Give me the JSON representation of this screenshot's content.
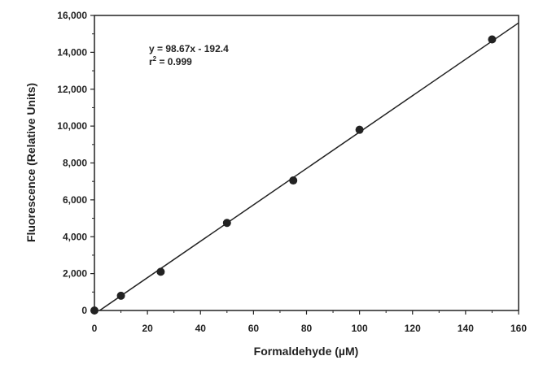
{
  "chart_data": {
    "type": "scatter",
    "title": "",
    "xlabel": "Formaldehyde (µM)",
    "ylabel": "Fluorescence (Relative Units)",
    "xlim": [
      0,
      160
    ],
    "ylim": [
      0,
      16000
    ],
    "x_ticks": [
      0,
      20,
      40,
      60,
      80,
      100,
      120,
      140,
      160
    ],
    "x_tick_labels": [
      "0",
      "20",
      "40",
      "60",
      "80",
      "100",
      "120",
      "140",
      "160"
    ],
    "y_ticks": [
      0,
      2000,
      4000,
      6000,
      8000,
      10000,
      12000,
      14000,
      16000
    ],
    "y_tick_labels": [
      "0",
      "2,000",
      "4,000",
      "6,000",
      "8,000",
      "10,000",
      "12,000",
      "14,000",
      "16,000"
    ],
    "grid": false,
    "legend": "none",
    "series": [
      {
        "x": [
          0,
          10,
          25,
          50,
          75,
          100,
          150
        ],
        "y": [
          0,
          800,
          2100,
          4750,
          7050,
          9800,
          14700
        ]
      }
    ],
    "fit_line": {
      "slope": 98.67,
      "intercept": -192.4,
      "x_range": [
        0,
        160
      ]
    },
    "annotations": {
      "equation": "y = 98.67x - 192.4",
      "r2_prefix": "r",
      "r2_sup": "2",
      "r2_suffix": " = 0.999"
    },
    "colors": {
      "marker": "#222222",
      "line": "#222222",
      "axis": "#222222"
    }
  }
}
